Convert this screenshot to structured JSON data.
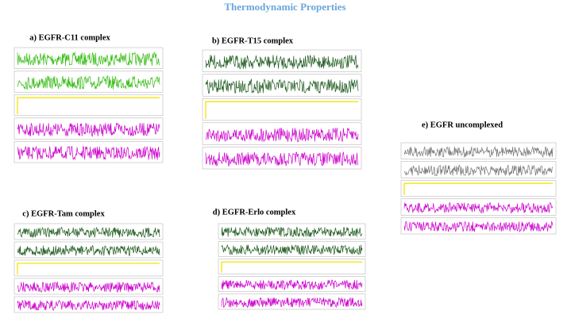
{
  "header": {
    "title": "Thermodynamic Properties"
  },
  "panels": [
    {
      "title": "a) EGFR-C11 complex",
      "trace_color": "#33bb11"
    },
    {
      "title": "b) EGFR-T15 complex",
      "trace_color": "#1e5a1e"
    },
    {
      "title": "c) EGFR-Tam complex",
      "trace_color": "#1e5a1e"
    },
    {
      "title": "d) EGFR-Erlo complex",
      "trace_color": "#1e5a1e"
    },
    {
      "title": "e) EGFR uncomplexed",
      "trace_color": "#777777"
    }
  ]
}
